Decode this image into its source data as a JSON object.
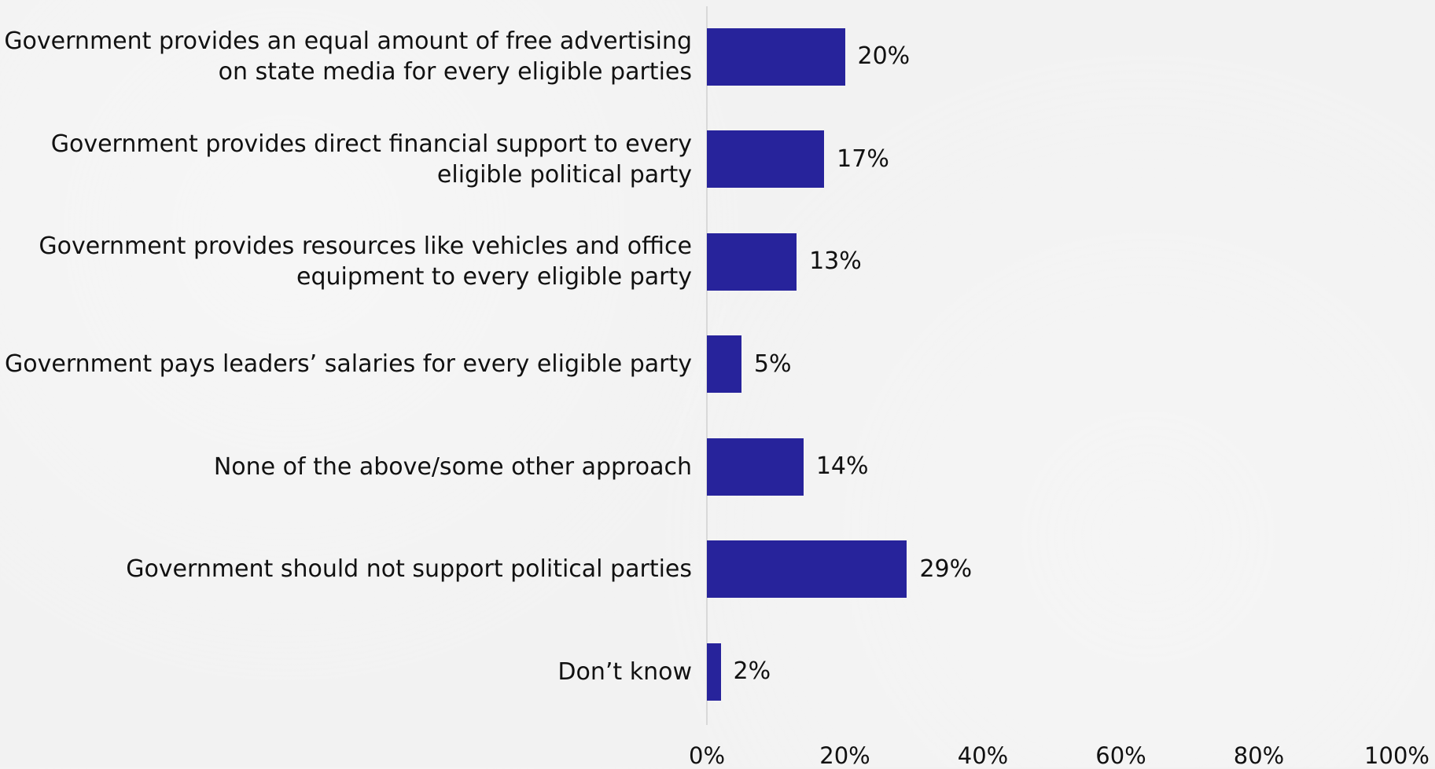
{
  "chart_data": {
    "type": "bar",
    "orientation": "horizontal",
    "categories": [
      "Government provides an equal amount of free advertising on state media for every eligible parties",
      "Government provides direct financial support to every eligible political party",
      "Government provides resources like vehicles and office equipment to every eligible party",
      "Government pays leaders’ salaries for every eligible party",
      "None of the above/some other approach",
      "Government should not support political parties",
      "Don’t know"
    ],
    "values": [
      20,
      17,
      13,
      5,
      14,
      29,
      2
    ],
    "value_labels": [
      "20%",
      "17%",
      "13%",
      "5%",
      "14%",
      "29%",
      "2%"
    ],
    "x_ticks": [
      0,
      20,
      40,
      60,
      80,
      100
    ],
    "x_tick_labels": [
      "0%",
      "20%",
      "40%",
      "60%",
      "80%",
      "100%"
    ],
    "xlim": [
      0,
      100
    ],
    "title": "",
    "xlabel": "",
    "ylabel": "",
    "grid": false,
    "legend": "none",
    "bar_color": "#27239b"
  }
}
